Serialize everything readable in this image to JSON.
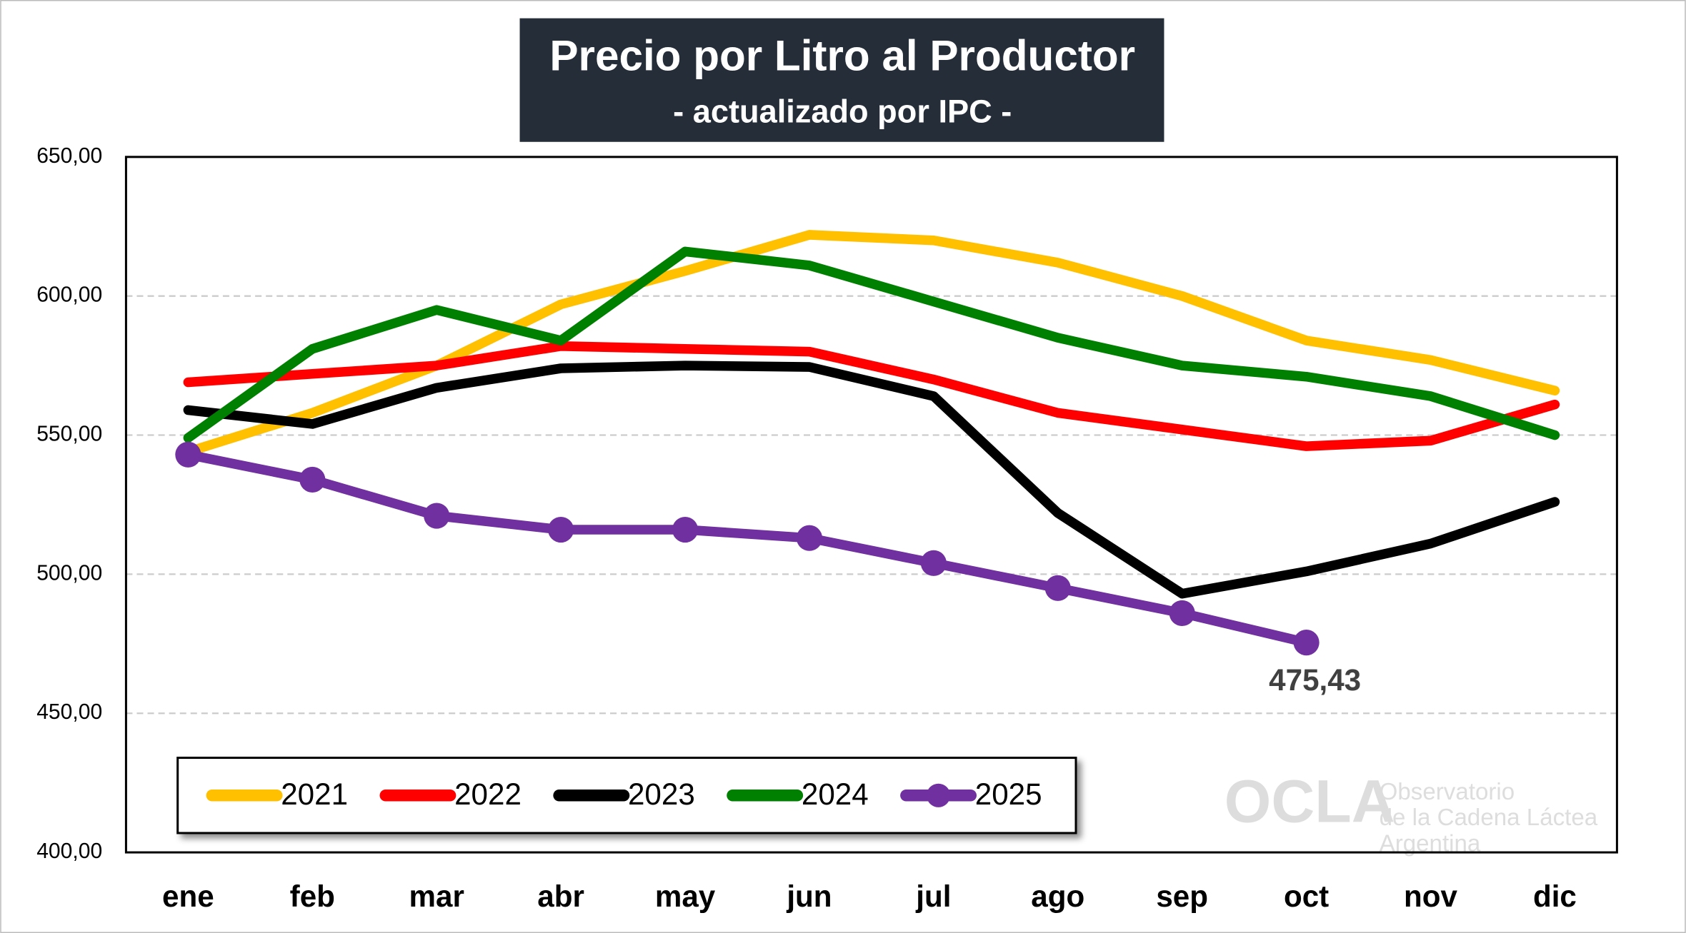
{
  "chart_data": {
    "type": "line",
    "title": "Precio por Litro al Productor",
    "subtitle": "- actualizado por IPC -",
    "categories": [
      "ene",
      "feb",
      "mar",
      "abr",
      "may",
      "jun",
      "jul",
      "ago",
      "sep",
      "oct",
      "nov",
      "dic"
    ],
    "series": [
      {
        "name": "2021",
        "color": "#ffc000",
        "values": [
          544,
          558,
          575,
          597,
          609,
          622,
          620,
          612,
          600,
          584,
          577,
          566
        ]
      },
      {
        "name": "2022",
        "color": "#ff0000",
        "values": [
          569,
          572,
          575,
          582,
          581,
          580,
          570,
          558,
          552,
          546,
          548,
          561
        ]
      },
      {
        "name": "2023",
        "color": "#000000",
        "values": [
          559,
          554,
          567,
          574,
          575,
          574.5,
          564,
          522,
          493,
          501,
          511,
          526
        ]
      },
      {
        "name": "2024",
        "color": "#008000",
        "values": [
          549,
          581,
          595,
          584,
          616,
          611,
          598,
          585,
          575,
          571,
          564,
          550
        ]
      },
      {
        "name": "2025",
        "color": "#7030a0",
        "markers": true,
        "values": [
          543,
          534,
          521,
          516,
          516,
          513,
          504,
          495,
          486,
          475.43,
          null,
          null
        ],
        "value_labels": [
          null,
          null,
          null,
          null,
          null,
          null,
          null,
          null,
          null,
          "475,43",
          null,
          null
        ]
      }
    ],
    "ylim": [
      400,
      650
    ],
    "yticks": [
      {
        "value": 400,
        "label": "400,00"
      },
      {
        "value": 450,
        "label": "450,00"
      },
      {
        "value": 500,
        "label": "500,00"
      },
      {
        "value": 550,
        "label": "550,00"
      },
      {
        "value": 600,
        "label": "600,00"
      },
      {
        "value": 650,
        "label": "650,00"
      }
    ],
    "grid": true,
    "legend": "bottom-left",
    "watermark": [
      "OCLA",
      "Observatorio",
      "de la Cadena Láctea",
      "Argentina"
    ]
  }
}
